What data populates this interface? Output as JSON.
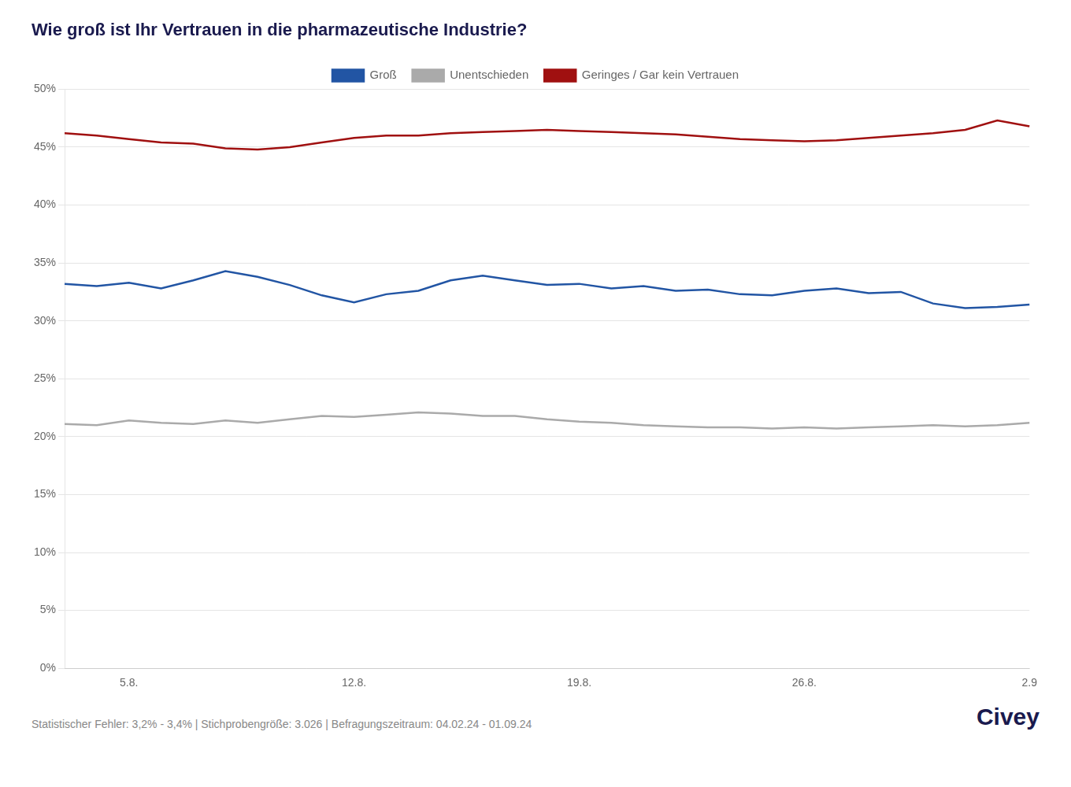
{
  "chart_data": {
    "type": "line",
    "title": "Wie groß ist Ihr Vertrauen in die pharmazeutische Industrie?",
    "annotations": [
      "Statistischer Fehler: 3,2% - 3,4% | Stichprobengröße: 3.026 | Befragungszeitraum: 04.02.24 - 01.09.24",
      "Civey"
    ],
    "categories": [
      null,
      null,
      "5.8.",
      null,
      null,
      null,
      null,
      null,
      null,
      "12.8.",
      null,
      null,
      null,
      null,
      null,
      null,
      "19.8.",
      null,
      null,
      null,
      null,
      null,
      null,
      "26.8.",
      null,
      null,
      null,
      null,
      null,
      null,
      "2.9"
    ],
    "series": [
      {
        "name": "Groß",
        "color": "#2255a4",
        "values": [
          33.2,
          33.0,
          33.3,
          32.8,
          33.5,
          34.3,
          33.8,
          33.1,
          32.2,
          31.6,
          32.3,
          32.6,
          33.5,
          33.9,
          33.5,
          33.1,
          33.2,
          32.8,
          33.0,
          32.6,
          32.7,
          32.3,
          32.2,
          32.6,
          32.8,
          32.4,
          32.5,
          31.5,
          31.1,
          31.2,
          31.4
        ]
      },
      {
        "name": "Unentschieden",
        "color": "#aaaaaa",
        "values": [
          21.1,
          21.0,
          21.4,
          21.2,
          21.1,
          21.4,
          21.2,
          21.5,
          21.8,
          21.7,
          21.9,
          22.1,
          22.0,
          21.8,
          21.8,
          21.5,
          21.3,
          21.2,
          21.0,
          20.9,
          20.8,
          20.8,
          20.7,
          20.8,
          20.7,
          20.8,
          20.9,
          21.0,
          20.9,
          21.0,
          21.2
        ]
      },
      {
        "name": "Geringes / Gar kein Vertrauen",
        "color": "#a01010",
        "values": [
          46.2,
          46.0,
          45.7,
          45.4,
          45.3,
          44.9,
          44.8,
          45.0,
          45.4,
          45.8,
          46.0,
          46.0,
          46.2,
          46.3,
          46.4,
          46.5,
          46.4,
          46.3,
          46.2,
          46.1,
          45.9,
          45.7,
          45.6,
          45.5,
          45.6,
          45.8,
          46.0,
          46.2,
          46.5,
          47.3,
          46.8
        ]
      }
    ],
    "ylim": [
      0,
      50
    ],
    "yticks": [
      {
        "value": 0,
        "label": "0%"
      },
      {
        "value": 5,
        "label": "5%"
      },
      {
        "value": 10,
        "label": "10%"
      },
      {
        "value": 15,
        "label": "15%"
      },
      {
        "value": 20,
        "label": "20%"
      },
      {
        "value": 25,
        "label": "25%"
      },
      {
        "value": 30,
        "label": "30%"
      },
      {
        "value": 35,
        "label": "35%"
      },
      {
        "value": 40,
        "label": "40%"
      },
      {
        "value": 45,
        "label": "45%"
      },
      {
        "value": 50,
        "label": "50%"
      }
    ],
    "grid": true,
    "legend": "top"
  }
}
